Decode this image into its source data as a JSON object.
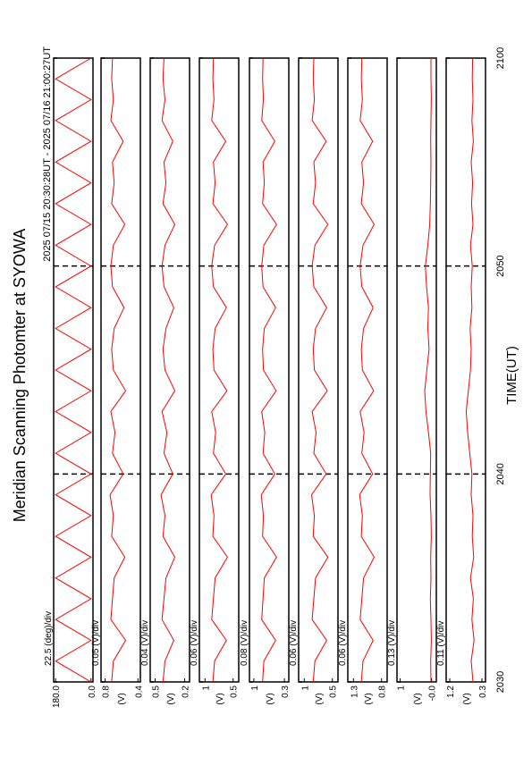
{
  "chart_data": {
    "type": "line",
    "title": "Meridian Scanning Photomter at SYOWA",
    "subtitle": "2025 07/15 20:30:28UT - 2025 07/16 21:00:27UT",
    "xlabel": "TIME(UT)",
    "xlim": [
      "20:30",
      "21:00"
    ],
    "xticks": [
      {
        "value": "20:30",
        "label": "2030"
      },
      {
        "value": "20:40",
        "label": "2040"
      },
      {
        "value": "20:50",
        "label": "2050"
      },
      {
        "value": "21:00",
        "label": "2100"
      }
    ],
    "x": [
      "20:30",
      "20:31",
      "20:32",
      "20:33",
      "20:34",
      "20:35",
      "20:36",
      "20:37",
      "20:38",
      "20:39",
      "20:40",
      "20:41",
      "20:42",
      "20:43",
      "20:44",
      "20:45",
      "20:46",
      "20:47",
      "20:48",
      "20:49",
      "20:50",
      "20:51",
      "20:52",
      "20:53",
      "20:54",
      "20:55",
      "20:56",
      "20:57",
      "20:58",
      "20:59",
      "21:00"
    ],
    "panels": [
      {
        "scale_label": "22.5 (deg)/div",
        "ylim": [
          -10,
          190
        ],
        "yticks": [
          {
            "value": 180,
            "label": "180.0"
          },
          {
            "value": 0,
            "label": "0.0"
          }
        ],
        "color": "#ff0000",
        "values": [
          0,
          180,
          0,
          180,
          0,
          180,
          0,
          180,
          0,
          180,
          0,
          180,
          0,
          180,
          0,
          180,
          0,
          180,
          0,
          180,
          0,
          180,
          0,
          180,
          0,
          180,
          0,
          180,
          0,
          180,
          0
        ]
      },
      {
        "scale_label": "0.05 (V)/div",
        "ylabel": "(V)",
        "ylim": [
          0.37,
          0.85
        ],
        "yticks": [
          0.8,
          0.4
        ],
        "color": "#ff0000",
        "values": [
          0.72,
          0.7,
          0.55,
          0.73,
          0.71,
          0.69,
          0.56,
          0.72,
          0.7,
          0.74,
          0.58,
          0.71,
          0.68,
          0.73,
          0.55,
          0.7,
          0.72,
          0.69,
          0.57,
          0.71,
          0.73,
          0.7,
          0.56,
          0.72,
          0.69,
          0.71,
          0.58,
          0.73,
          0.7,
          0.72,
          0.71
        ]
      },
      {
        "scale_label": "0.04 (V)/div",
        "ylabel": "(V)",
        "ylim": [
          0.15,
          0.55
        ],
        "yticks": [
          0.5,
          0.2
        ],
        "color": "#ff0000",
        "values": [
          0.42,
          0.4,
          0.31,
          0.43,
          0.41,
          0.39,
          0.3,
          0.42,
          0.4,
          0.44,
          0.32,
          0.41,
          0.38,
          0.43,
          0.3,
          0.4,
          0.42,
          0.39,
          0.31,
          0.41,
          0.43,
          0.4,
          0.3,
          0.42,
          0.39,
          0.41,
          0.32,
          0.43,
          0.4,
          0.42,
          0.41
        ]
      },
      {
        "scale_label": "0.06 (V)/div",
        "ylabel": "(V)",
        "ylim": [
          0.4,
          1.1
        ],
        "yticks": [
          1.0,
          0.5
        ],
        "color": "#ff0000",
        "values": [
          0.86,
          0.83,
          0.62,
          0.88,
          0.85,
          0.82,
          0.6,
          0.86,
          0.84,
          0.89,
          0.63,
          0.85,
          0.81,
          0.88,
          0.61,
          0.84,
          0.86,
          0.82,
          0.62,
          0.85,
          0.88,
          0.83,
          0.6,
          0.86,
          0.82,
          0.85,
          0.63,
          0.88,
          0.84,
          0.86,
          0.85
        ]
      },
      {
        "scale_label": "0.08 (V)/div",
        "ylabel": "(V)",
        "ylim": [
          0.2,
          1.1
        ],
        "yticks": [
          1.0,
          0.3
        ],
        "color": "#ff0000",
        "values": [
          0.8,
          0.77,
          0.5,
          0.82,
          0.79,
          0.76,
          0.48,
          0.8,
          0.78,
          0.83,
          0.52,
          0.79,
          0.75,
          0.82,
          0.49,
          0.78,
          0.8,
          0.76,
          0.5,
          0.79,
          0.82,
          0.77,
          0.48,
          0.8,
          0.76,
          0.79,
          0.52,
          0.82,
          0.78,
          0.8,
          0.79
        ]
      },
      {
        "scale_label": "0.06 (V)/div",
        "ylabel": "(V)",
        "ylim": [
          0.4,
          1.1
        ],
        "yticks": [
          1.0,
          0.5
        ],
        "color": "#ff0000",
        "values": [
          0.84,
          0.81,
          0.6,
          0.86,
          0.83,
          0.8,
          0.58,
          0.84,
          0.82,
          0.87,
          0.61,
          0.83,
          0.79,
          0.86,
          0.59,
          0.82,
          0.84,
          0.8,
          0.6,
          0.83,
          0.86,
          0.81,
          0.58,
          0.84,
          0.8,
          0.83,
          0.61,
          0.86,
          0.82,
          0.84,
          0.83
        ]
      },
      {
        "scale_label": "0.06 (V)/div",
        "ylabel": "(V)",
        "ylim": [
          0.7,
          1.4
        ],
        "yticks": [
          1.3,
          0.8
        ],
        "color": "#ff0000",
        "values": [
          1.16,
          1.13,
          0.95,
          1.18,
          1.15,
          1.12,
          0.93,
          1.16,
          1.14,
          1.19,
          0.96,
          1.15,
          1.11,
          1.18,
          0.94,
          1.14,
          1.16,
          1.12,
          0.95,
          1.15,
          1.18,
          1.13,
          0.93,
          1.16,
          1.12,
          1.15,
          0.96,
          1.18,
          1.14,
          1.16,
          1.15
        ]
      },
      {
        "scale_label": "0.13 (V)/div",
        "ylabel": "(V)",
        "ylim": [
          -0.15,
          1.1
        ],
        "yticks": [
          1.0,
          {
            "value": 0,
            "label": "-0.0"
          }
        ],
        "color": "#ff0000",
        "values": [
          0.02,
          0.03,
          0.01,
          0.02,
          0.04,
          0.02,
          0.03,
          0.01,
          0.02,
          0.05,
          0.04,
          0.03,
          0.1,
          0.18,
          0.22,
          0.15,
          0.08,
          0.12,
          0.1,
          0.16,
          0.2,
          0.12,
          0.06,
          0.04,
          0.03,
          0.02,
          0.03,
          0.02,
          0.01,
          0.02,
          0.02
        ]
      },
      {
        "scale_label": "0.11 (V)/div",
        "ylabel": "(V)",
        "ylim": [
          0.2,
          1.3
        ],
        "yticks": [
          1.2,
          0.3
        ],
        "color": "#ff0000",
        "values": [
          0.55,
          0.6,
          0.52,
          0.58,
          0.54,
          0.62,
          0.53,
          0.57,
          0.55,
          0.6,
          0.58,
          0.64,
          0.7,
          0.74,
          0.68,
          0.62,
          0.6,
          0.63,
          0.58,
          0.6,
          0.57,
          0.62,
          0.55,
          0.59,
          0.56,
          0.6,
          0.54,
          0.58,
          0.55,
          0.57,
          0.56
        ]
      }
    ]
  }
}
